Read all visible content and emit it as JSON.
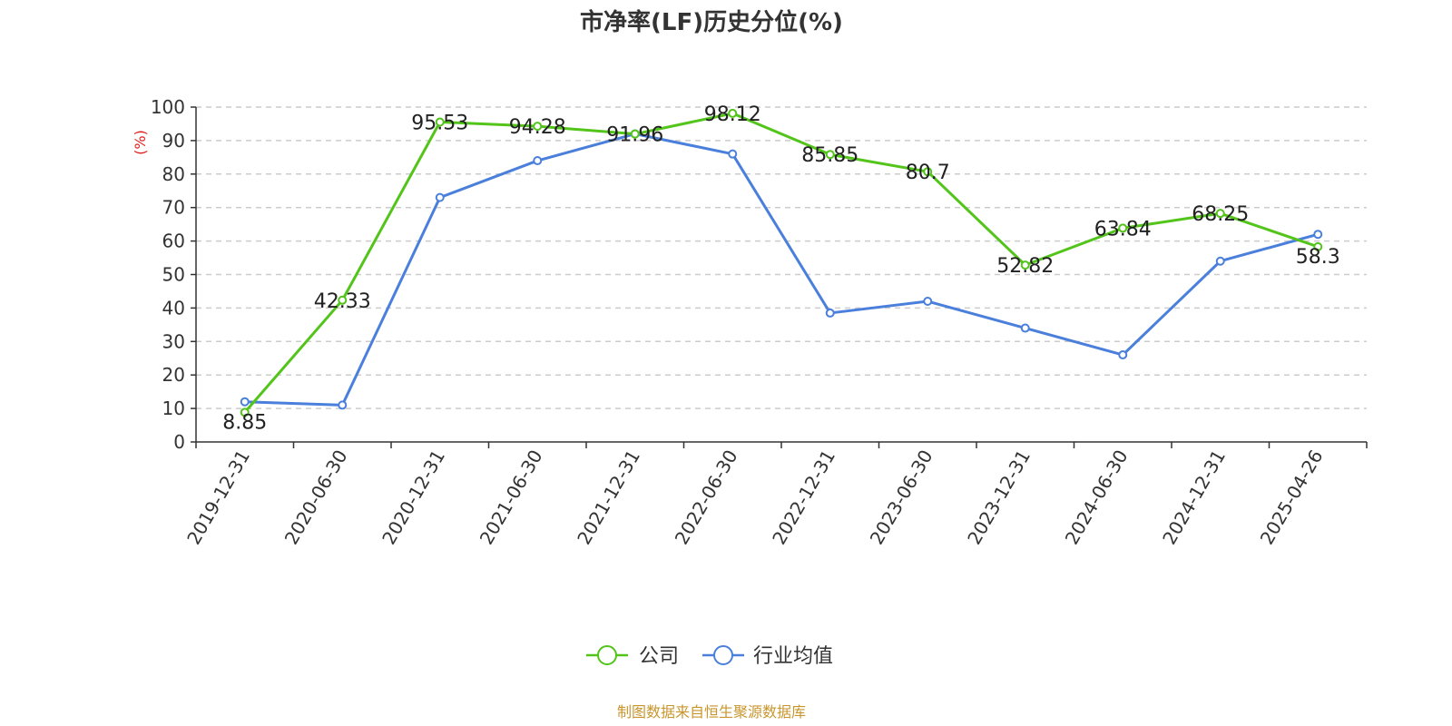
{
  "chart_data": {
    "type": "line",
    "title": "市净率(LF)历史分位(%)",
    "ylabel": "(%)",
    "xlabel": "",
    "ylim": [
      0,
      100
    ],
    "yticks": [
      0,
      10,
      20,
      30,
      40,
      50,
      60,
      70,
      80,
      90,
      100
    ],
    "grid": true,
    "categories": [
      "2019-12-31",
      "2020-06-30",
      "2020-12-31",
      "2021-06-30",
      "2021-12-31",
      "2022-06-30",
      "2022-12-31",
      "2023-06-30",
      "2023-12-31",
      "2024-06-30",
      "2024-12-31",
      "2025-04-26"
    ],
    "series": [
      {
        "name": "公司",
        "color": "#52c41a",
        "values": [
          8.85,
          42.33,
          95.53,
          94.28,
          91.96,
          98.12,
          85.85,
          80.7,
          52.82,
          63.84,
          68.25,
          58.3
        ],
        "labels": [
          "8.85",
          "42.33",
          "95.53",
          "94.28",
          "91.96",
          "98.12",
          "85.85",
          "80.7",
          "52.82",
          "63.84",
          "68.25",
          "58.3"
        ]
      },
      {
        "name": "行业均值",
        "color": "#4a7fdc",
        "values": [
          12,
          11,
          73,
          84,
          92,
          86,
          38.5,
          42,
          34,
          26,
          54,
          62
        ]
      }
    ],
    "legend_position": "bottom-center",
    "ylabel_color": "#e02020",
    "source_color": "#c8962d"
  },
  "footer": {
    "source": "制图数据来自恒生聚源数据库"
  }
}
